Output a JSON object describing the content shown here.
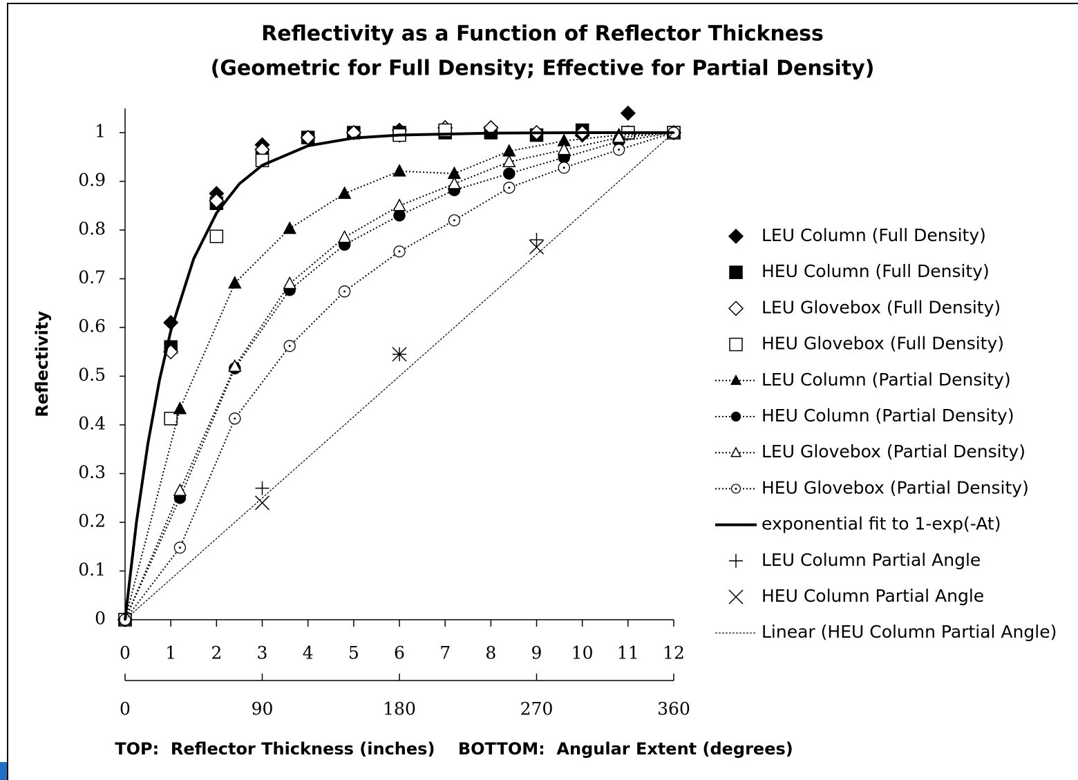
{
  "chart_data": {
    "type": "scatter",
    "title": [
      "Reflectivity as a Function of Reflector  Thickness",
      "(Geometric for Full Density; Effective for Partial  Density)"
    ],
    "ylabel": "Reflectivity",
    "xlabel": "TOP:  Reflector Thickness (inches)    BOTTOM:  Angular Extent (degrees)",
    "xlim": [
      0,
      12
    ],
    "xticks": [
      0,
      1,
      2,
      3,
      4,
      5,
      6,
      7,
      8,
      9,
      10,
      11,
      12
    ],
    "x2lim": [
      0,
      360
    ],
    "x2ticks": [
      0,
      90,
      180,
      270,
      360
    ],
    "ylim": [
      0,
      1
    ],
    "yticks": [
      0,
      0.1,
      0.2,
      0.3,
      0.4,
      0.5,
      0.6,
      0.7,
      0.8,
      0.9,
      1
    ],
    "legend": "right",
    "series": [
      {
        "name": "LEU Column (Full Density)",
        "color": "#000000",
        "marker": "diamond",
        "fill": true,
        "line": "none",
        "x": [
          0,
          1,
          2,
          3,
          4,
          5,
          6,
          7,
          8,
          9,
          10,
          11,
          12
        ],
        "values": [
          0,
          0.61,
          0.875,
          0.975,
          0.99,
          1.0,
          1.005,
          1.01,
          1.01,
          1.0,
          0.995,
          1.04,
          1
        ]
      },
      {
        "name": "HEU Column (Full Density)",
        "color": "#000000",
        "marker": "square",
        "fill": true,
        "line": "none",
        "x": [
          0,
          1,
          2,
          3,
          4,
          5,
          6,
          7,
          8,
          9,
          10,
          11,
          12
        ],
        "values": [
          0,
          0.56,
          0.855,
          0.955,
          0.99,
          1.0,
          1.0,
          1.0,
          1.0,
          0.995,
          1.005,
          1.0,
          1
        ]
      },
      {
        "name": "LEU Glovebox (Full Density)",
        "color": "#000000",
        "marker": "diamond",
        "fill": false,
        "line": "none",
        "x": [
          0,
          1,
          2,
          3,
          4,
          5,
          6,
          7,
          8,
          9,
          10,
          11,
          12
        ],
        "values": [
          0,
          0.55,
          0.86,
          0.965,
          0.99,
          1.0,
          0.995,
          1.01,
          1.01,
          1.0,
          1.0,
          1.0,
          1
        ]
      },
      {
        "name": "HEU Glovebox (Full Density)",
        "color": "#000000",
        "marker": "square",
        "fill": false,
        "line": "none",
        "x": [
          0,
          1,
          2,
          3,
          6,
          7,
          11,
          12
        ],
        "values": [
          0,
          0.413,
          0.787,
          0.943,
          0.995,
          1.005,
          1.0,
          1
        ]
      },
      {
        "name": "LEU Column (Partial Density)",
        "color": "#000000",
        "marker": "triangle",
        "fill": true,
        "line": "dotted",
        "x": [
          0,
          1.2,
          2.4,
          3.6,
          4.8,
          6,
          7.2,
          8.4,
          9.6,
          10.8,
          12
        ],
        "values": [
          0,
          0.433,
          0.691,
          0.803,
          0.875,
          0.921,
          0.916,
          0.962,
          0.983,
          0.995,
          1
        ]
      },
      {
        "name": "HEU Column (Partial Density)",
        "color": "#000000",
        "marker": "circle",
        "fill": true,
        "line": "dotted",
        "x": [
          0,
          1.2,
          2.4,
          3.6,
          4.8,
          6,
          7.2,
          8.4,
          9.6,
          10.8,
          12
        ],
        "values": [
          0,
          0.25,
          0.516,
          0.677,
          0.77,
          0.83,
          0.882,
          0.916,
          0.949,
          0.982,
          1
        ]
      },
      {
        "name": "LEU Glovebox (Partial Density)",
        "color": "#000000",
        "marker": "triangle",
        "fill": false,
        "line": "dotted",
        "x": [
          0,
          1.2,
          2.4,
          3.6,
          4.8,
          6,
          7.2,
          8.4,
          9.6,
          10.8,
          12
        ],
        "values": [
          0,
          0.265,
          0.52,
          0.69,
          0.785,
          0.85,
          0.895,
          0.94,
          0.965,
          0.99,
          1
        ]
      },
      {
        "name": "HEU Glovebox (Partial Density)",
        "color": "#000000",
        "marker": "dotcircle",
        "fill": false,
        "line": "dotted",
        "x": [
          0,
          1.2,
          2.4,
          3.6,
          4.8,
          6,
          7.2,
          8.4,
          9.6,
          10.8,
          12
        ],
        "values": [
          0,
          0.148,
          0.413,
          0.562,
          0.674,
          0.756,
          0.82,
          0.887,
          0.928,
          0.965,
          1
        ]
      },
      {
        "name": "exponential fit to 1-exp(-At)",
        "color": "#000000",
        "marker": "none",
        "fill": false,
        "line": "solid",
        "x": [
          0,
          0.25,
          0.5,
          0.75,
          1,
          1.5,
          2,
          2.5,
          3,
          4,
          5,
          6,
          8,
          10,
          12
        ],
        "values": [
          0,
          0.201,
          0.362,
          0.491,
          0.593,
          0.741,
          0.835,
          0.895,
          0.933,
          0.973,
          0.989,
          0.995,
          0.999,
          1.0,
          1.0
        ]
      },
      {
        "name": "LEU Column Partial Angle",
        "color": "#000000",
        "marker": "plus",
        "fill": false,
        "line": "none",
        "xaxis": "x2",
        "x": [
          90,
          180,
          270
        ],
        "values": [
          0.27,
          0.545,
          0.78
        ]
      },
      {
        "name": "HEU Column Partial Angle",
        "color": "#000000",
        "marker": "cross",
        "fill": false,
        "line": "none",
        "xaxis": "x2",
        "x": [
          90,
          180,
          270
        ],
        "values": [
          0.24,
          0.545,
          0.765
        ]
      },
      {
        "name": "Linear (HEU Column Partial Angle)",
        "color": "#000000",
        "marker": "none",
        "fill": false,
        "line": "dashed",
        "xaxis": "x2",
        "x": [
          0,
          360
        ],
        "values": [
          0,
          1
        ]
      }
    ]
  }
}
